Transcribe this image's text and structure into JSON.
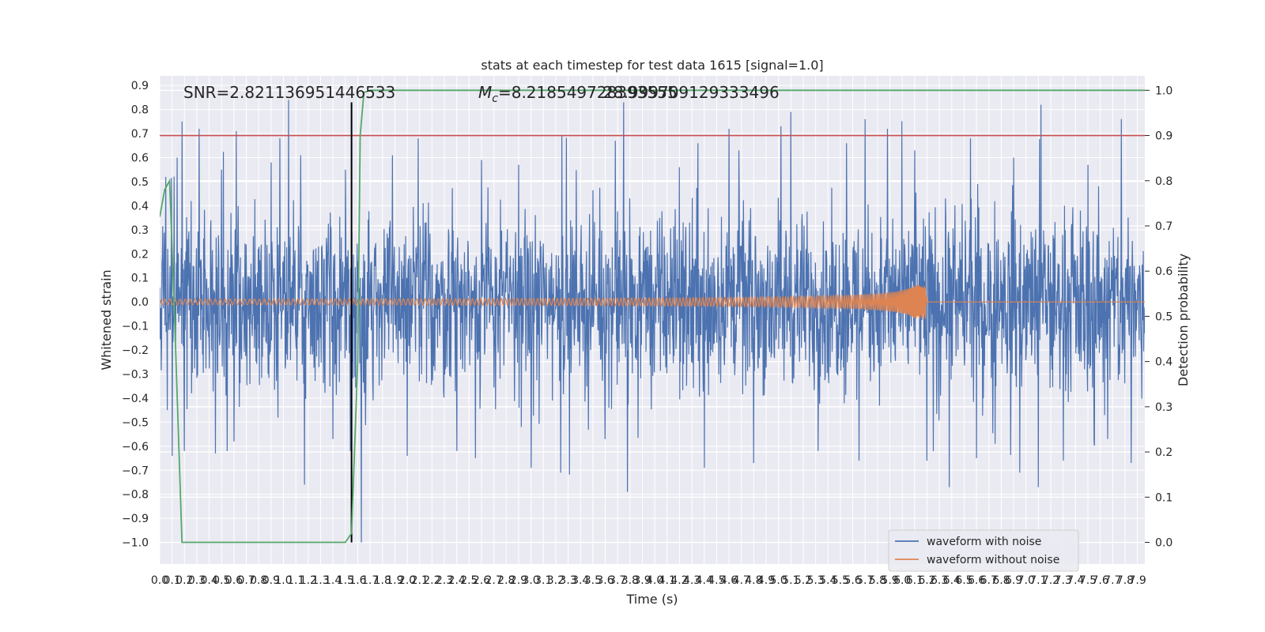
{
  "chart_data": {
    "type": "line",
    "title": "stats at each timestep for test data 1615 [signal=1.0]",
    "xlabel": "Time (s)",
    "ylabel": "Whitened strain",
    "ylabel_right": "Detection probability",
    "xlim": [
      0.0,
      7.96
    ],
    "ylim": [
      -1.09,
      0.94
    ],
    "ylim_right": [
      -0.048,
      1.032
    ],
    "x_ticks": [
      0.0,
      0.1,
      0.2,
      0.3,
      0.4,
      0.5,
      0.6,
      0.7,
      0.8,
      0.9,
      1.0,
      1.1,
      1.2,
      1.3,
      1.4,
      1.5,
      1.6,
      1.7,
      1.8,
      1.9,
      2.0,
      2.1,
      2.2,
      2.3,
      2.4,
      2.5,
      2.6,
      2.7,
      2.8,
      2.9,
      3.0,
      3.1,
      3.2,
      3.3,
      3.4,
      3.5,
      3.6,
      3.7,
      3.8,
      3.9,
      4.0,
      4.1,
      4.2,
      4.3,
      4.4,
      4.5,
      4.6,
      4.7,
      4.8,
      4.9,
      5.0,
      5.1,
      5.2,
      5.3,
      5.4,
      5.5,
      5.6,
      5.7,
      5.8,
      5.9,
      6.0,
      6.1,
      6.2,
      6.3,
      6.4,
      6.5,
      6.6,
      6.7,
      6.8,
      6.9,
      7.0,
      7.1,
      7.2,
      7.3,
      7.4,
      7.5,
      7.6,
      7.7,
      7.8,
      7.9
    ],
    "x_tick_labels": [
      "0.0",
      "0.1",
      "0.2",
      "0.3",
      "0.4",
      "0.5",
      "0.6",
      "0.7",
      "0.8",
      "0.9",
      "1.0",
      "1.1",
      "1.2",
      "1.3",
      "1.4",
      "1.5",
      "1.6",
      "1.7",
      "1.8",
      "1.9",
      "2.0",
      "2.1",
      "2.2",
      "2.3",
      "2.4",
      "2.5",
      "2.6",
      "2.7",
      "2.8",
      "2.9",
      "3.0",
      "3.1",
      "3.2",
      "3.3",
      "3.4",
      "3.5",
      "3.6",
      "3.7",
      "3.8",
      "3.9",
      "4.0",
      "4.1",
      "4.2",
      "4.3",
      "4.4",
      "4.5",
      "4.6",
      "4.7",
      "4.8",
      "4.9",
      "5.0",
      "5.1",
      "5.2",
      "5.3",
      "5.4",
      "5.5",
      "5.6",
      "5.7",
      "5.8",
      "5.9",
      "6.0",
      "6.1",
      "6.2",
      "6.3",
      "6.4",
      "6.5",
      "6.6",
      "6.7",
      "6.8",
      "6.9",
      "7.0",
      "7.1",
      "7.2",
      "7.3",
      "7.4",
      "7.5",
      "7.6",
      "7.7",
      "7.8",
      "7.9"
    ],
    "y_ticks": [
      0.9,
      0.8,
      0.7,
      0.6,
      0.5,
      0.4,
      0.3,
      0.2,
      0.1,
      0.0,
      -0.1,
      -0.2,
      -0.3,
      -0.4,
      -0.5,
      -0.6,
      -0.7,
      -0.8,
      -0.9,
      -1.0
    ],
    "y_tick_labels": [
      "0.9",
      "0.8",
      "0.7",
      "0.6",
      "0.5",
      "0.4",
      "0.3",
      "0.2",
      "0.1",
      "0.0",
      "−0.1",
      "−0.2",
      "−0.3",
      "−0.4",
      "−0.5",
      "−0.6",
      "−0.7",
      "−0.8",
      "−0.9",
      "−1.0"
    ],
    "y_ticks_right": [
      1.0,
      0.9,
      0.8,
      0.7,
      0.6,
      0.5,
      0.4,
      0.3,
      0.2,
      0.1,
      0.0
    ],
    "y_tick_labels_right": [
      "1.0",
      "0.9",
      "0.8",
      "0.7",
      "0.6",
      "0.5",
      "0.4",
      "0.3",
      "0.2",
      "0.1",
      "0.0"
    ],
    "grid": true,
    "legend_position": "lower-right",
    "annotations": {
      "snr": "SNR=2.821136951446533",
      "mc_symbol": "M",
      "mc_sub": "c",
      "mc_value": "=8.218549728393555",
      "overlap": "28.999709129333496"
    },
    "threshold_right": 0.9,
    "marker_time": 1.55,
    "series": [
      {
        "name": "waveform with noise",
        "color": "#4c72b0",
        "axis": "left",
        "envelope_typical": 0.32,
        "spikes_pos": [
          [
            0.05,
            0.52
          ],
          [
            0.1,
            0.61
          ],
          [
            0.14,
            0.6
          ],
          [
            0.18,
            0.75
          ],
          [
            0.32,
            0.72
          ],
          [
            0.5,
            0.55
          ],
          [
            0.62,
            0.71
          ],
          [
            0.9,
            0.58
          ],
          [
            0.97,
            0.68
          ],
          [
            1.04,
            0.84
          ],
          [
            1.14,
            0.61
          ],
          [
            1.5,
            0.55
          ],
          [
            1.88,
            0.61
          ],
          [
            2.09,
            0.68
          ],
          [
            2.6,
            0.59
          ],
          [
            2.9,
            0.57
          ],
          [
            3.25,
            0.69
          ],
          [
            3.68,
            0.67
          ],
          [
            3.75,
            0.83
          ],
          [
            4.2,
            0.56
          ],
          [
            4.35,
            0.66
          ],
          [
            4.6,
            0.72
          ],
          [
            4.68,
            0.63
          ],
          [
            5.02,
            0.73
          ],
          [
            5.1,
            0.79
          ],
          [
            5.55,
            0.66
          ],
          [
            5.7,
            0.76
          ],
          [
            5.88,
            0.72
          ],
          [
            6.1,
            0.63
          ],
          [
            6.55,
            0.68
          ],
          [
            6.9,
            0.6
          ],
          [
            7.12,
            0.82
          ],
          [
            7.5,
            0.57
          ],
          [
            7.77,
            0.76
          ]
        ],
        "spikes_neg": [
          [
            0.06,
            -0.45
          ],
          [
            0.1,
            -0.64
          ],
          [
            0.2,
            -0.62
          ],
          [
            0.45,
            -0.63
          ],
          [
            0.6,
            -0.58
          ],
          [
            1.17,
            -0.76
          ],
          [
            1.4,
            -0.57
          ],
          [
            1.54,
            -0.62
          ],
          [
            1.63,
            -1.0
          ],
          [
            2.0,
            -0.64
          ],
          [
            2.4,
            -0.62
          ],
          [
            2.55,
            -0.65
          ],
          [
            3.0,
            -0.69
          ],
          [
            3.24,
            -0.71
          ],
          [
            3.6,
            -0.57
          ],
          [
            3.78,
            -0.79
          ],
          [
            4.4,
            -0.69
          ],
          [
            4.8,
            -0.67
          ],
          [
            5.32,
            -0.62
          ],
          [
            5.65,
            -0.66
          ],
          [
            6.2,
            -0.66
          ],
          [
            6.38,
            -0.77
          ],
          [
            6.6,
            -0.65
          ],
          [
            6.75,
            -0.59
          ],
          [
            6.95,
            -0.71
          ],
          [
            7.1,
            -0.77
          ],
          [
            7.3,
            -0.66
          ],
          [
            7.55,
            -0.58
          ],
          [
            7.66,
            -0.57
          ],
          [
            7.85,
            -0.67
          ]
        ]
      },
      {
        "name": "waveform without noise",
        "color": "#dd8452",
        "axis": "left",
        "chirp_start": 0.0,
        "chirp_end": 6.2,
        "amplitude_start": 0.005,
        "amplitude_peak": 0.07
      },
      {
        "name": "detection probability",
        "color": "#55a868",
        "axis": "right",
        "x": [
          0.0,
          0.04,
          0.08,
          0.12,
          0.18,
          0.3,
          0.8,
          1.2,
          1.5,
          1.55,
          1.6,
          1.62,
          1.65,
          1.7,
          2.0,
          4.0,
          6.0,
          7.96
        ],
        "values": [
          0.72,
          0.78,
          0.8,
          0.5,
          0.0,
          0.0,
          0.0,
          0.0,
          0.0,
          0.02,
          0.4,
          0.9,
          0.995,
          1.0,
          1.0,
          1.0,
          1.0,
          1.0
        ]
      }
    ]
  }
}
